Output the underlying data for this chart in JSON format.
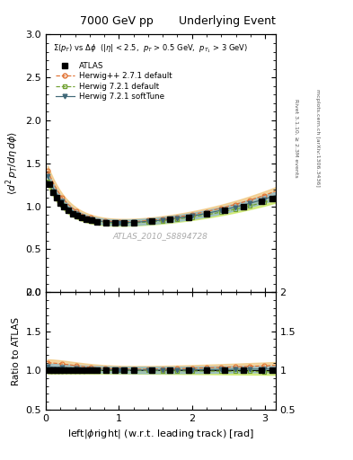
{
  "title_left": "7000 GeV pp",
  "title_right": "Underlying Event",
  "watermark": "ATLAS_2010_S8894728",
  "right_label_top": "Rivet 3.1.10, ≥ 2.3M events",
  "right_label_bot": "mcplots.cern.ch [arXiv:1306.3436]",
  "annotation": "Σ(p_{T}) vs Δϕ  (|η| < 2.5,  p_{T} > 0.5 GeV,  p_{T1} > 3 GeV)",
  "ylabel_main": "⟨d² p_T/dηdϕ⟩",
  "ylabel_ratio": "Ratio to ATLAS",
  "xlabel": "left|ϕright| (w.r.t. leading track) [rad]",
  "ylim_main": [
    0,
    3
  ],
  "ylim_ratio": [
    0.5,
    2
  ],
  "xlim": [
    0,
    3.14159
  ],
  "series": {
    "ATLAS": {
      "color": "#000000",
      "marker": "s",
      "label": "ATLAS"
    },
    "Herwigpp": {
      "color": "#e07030",
      "marker": "o",
      "label": "Herwig++ 2.7.1 default",
      "band": "#f0c880"
    },
    "Herwig721": {
      "color": "#70a030",
      "marker": "s",
      "label": "Herwig 7.2.1 default",
      "band": "#c8e860"
    },
    "Herwig721soft": {
      "color": "#406878",
      "marker": "v",
      "label": "Herwig 7.2.1 softTune",
      "band": "#90b8c8"
    }
  }
}
